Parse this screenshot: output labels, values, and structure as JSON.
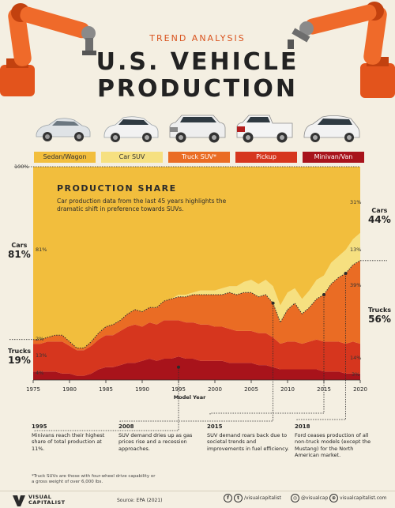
{
  "header": {
    "kicker": "TREND ANALYSIS",
    "title_line1": "U.S. VEHICLE",
    "title_line2": "PRODUCTION"
  },
  "legend": [
    {
      "label": "Sedan/Wagon",
      "color": "#f2be3d"
    },
    {
      "label": "Car SUV",
      "color": "#f6e080"
    },
    {
      "label": "Truck SUV*",
      "color": "#ea6c24"
    },
    {
      "label": "Pickup",
      "color": "#d6361e"
    },
    {
      "label": "Minivan/Van",
      "color": "#a8131b"
    }
  ],
  "chart_text": {
    "top_label": "100%",
    "share_title": "PRODUCTION SHARE",
    "share_desc": "Car production data from the last 45 years highlights the dramatic shift in preference towards SUVs.",
    "cars_left": {
      "label": "Cars",
      "pct": "81%"
    },
    "trucks_left": {
      "label": "Trucks",
      "pct": "19%"
    },
    "cars_right": {
      "label": "Cars",
      "pct": "44%"
    },
    "trucks_right": {
      "label": "Trucks",
      "pct": "56%"
    },
    "left_values": {
      "sedan": "81%",
      "pickup": "13%",
      "trucksuv": "2%",
      "minivan": "4%"
    },
    "right_values": {
      "sedan": "31%",
      "carsuv": "13%",
      "trucksuv": "39%",
      "pickup": "14%",
      "minivan": "3%"
    },
    "xlabel": "Model Year"
  },
  "annotations": [
    {
      "year": "1995",
      "text": "Minivans reach their highest share of total production at 11%."
    },
    {
      "year": "2008",
      "text": "SUV demand dries up as gas prices rise and a recession approaches."
    },
    {
      "year": "2015",
      "text": "SUV demand roars back due to societal trends and improvements in fuel efficiency."
    },
    {
      "year": "2018",
      "text": "Ford ceases production of all non-truck models (except the Mustang) for the North American market."
    }
  ],
  "footnote": "*Truck SUVs are those with four-wheel drive capability or a gross weight of over 6,000 lbs.",
  "footer": {
    "brand_line1": "VISUAL",
    "brand_line2": "CAPITALIST",
    "source": "Source: EPA (2021)",
    "social1": "/visualcapitalist",
    "social2": "@visualcap",
    "social3": "visualcapitalist.com"
  },
  "chart_data": {
    "type": "area",
    "stacked": true,
    "normalized_to": 100,
    "xlabel": "Model Year",
    "ylim": [
      0,
      100
    ],
    "x_ticks": [
      1975,
      1980,
      1985,
      1990,
      1995,
      2000,
      2005,
      2010,
      2015,
      2020
    ],
    "x": [
      1975,
      1976,
      1977,
      1978,
      1979,
      1980,
      1981,
      1982,
      1983,
      1984,
      1985,
      1986,
      1987,
      1988,
      1989,
      1990,
      1991,
      1992,
      1993,
      1994,
      1995,
      1996,
      1997,
      1998,
      1999,
      2000,
      2001,
      2002,
      2003,
      2004,
      2005,
      2006,
      2007,
      2008,
      2009,
      2010,
      2011,
      2012,
      2013,
      2014,
      2015,
      2016,
      2017,
      2018,
      2019,
      2020
    ],
    "series": [
      {
        "name": "Minivan/Van",
        "color": "#a8131b",
        "values": [
          4,
          4,
          4,
          4,
          3,
          3,
          2,
          2,
          3,
          5,
          6,
          6,
          7,
          8,
          8,
          9,
          10,
          9,
          10,
          10,
          11,
          10,
          10,
          9,
          9,
          9,
          9,
          8,
          8,
          8,
          8,
          7,
          7,
          6,
          5,
          5,
          5,
          5,
          5,
          5,
          4,
          4,
          4,
          3,
          3,
          3
        ]
      },
      {
        "name": "Pickup",
        "color": "#d6361e",
        "values": [
          13,
          13,
          14,
          14,
          15,
          13,
          12,
          12,
          13,
          14,
          15,
          15,
          16,
          17,
          18,
          16,
          17,
          17,
          18,
          18,
          17,
          17,
          17,
          17,
          17,
          16,
          16,
          16,
          15,
          15,
          15,
          15,
          15,
          14,
          12,
          13,
          13,
          12,
          13,
          14,
          14,
          14,
          14,
          14,
          15,
          14
        ]
      },
      {
        "name": "Truck SUV*",
        "color": "#ea6c24",
        "values": [
          2,
          2,
          2,
          3,
          3,
          2,
          1,
          1,
          2,
          3,
          4,
          5,
          5,
          6,
          7,
          7,
          7,
          8,
          9,
          10,
          11,
          12,
          13,
          14,
          14,
          15,
          15,
          17,
          17,
          18,
          18,
          17,
          18,
          16,
          10,
          15,
          18,
          14,
          16,
          19,
          22,
          27,
          30,
          33,
          36,
          39
        ]
      },
      {
        "name": "Car SUV",
        "color": "#f6e080",
        "values": [
          0,
          0,
          0,
          0,
          0,
          0,
          0,
          0,
          0,
          0,
          0,
          0,
          0,
          0,
          0,
          0,
          0,
          0,
          0,
          0,
          1,
          1,
          1,
          2,
          2,
          2,
          3,
          3,
          4,
          5,
          6,
          6,
          7,
          8,
          8,
          8,
          7,
          7,
          8,
          9,
          9,
          10,
          10,
          11,
          12,
          13
        ]
      },
      {
        "name": "Sedan/Wagon",
        "color": "#f2be3d",
        "values": [
          81,
          81,
          80,
          79,
          79,
          82,
          85,
          85,
          82,
          78,
          75,
          74,
          72,
          69,
          67,
          68,
          66,
          66,
          63,
          62,
          60,
          60,
          59,
          58,
          58,
          58,
          57,
          56,
          56,
          54,
          53,
          55,
          53,
          56,
          65,
          59,
          57,
          62,
          58,
          53,
          51,
          45,
          42,
          39,
          34,
          31
        ]
      }
    ],
    "annotation_years": [
      1995,
      2008,
      2015,
      2018
    ]
  }
}
